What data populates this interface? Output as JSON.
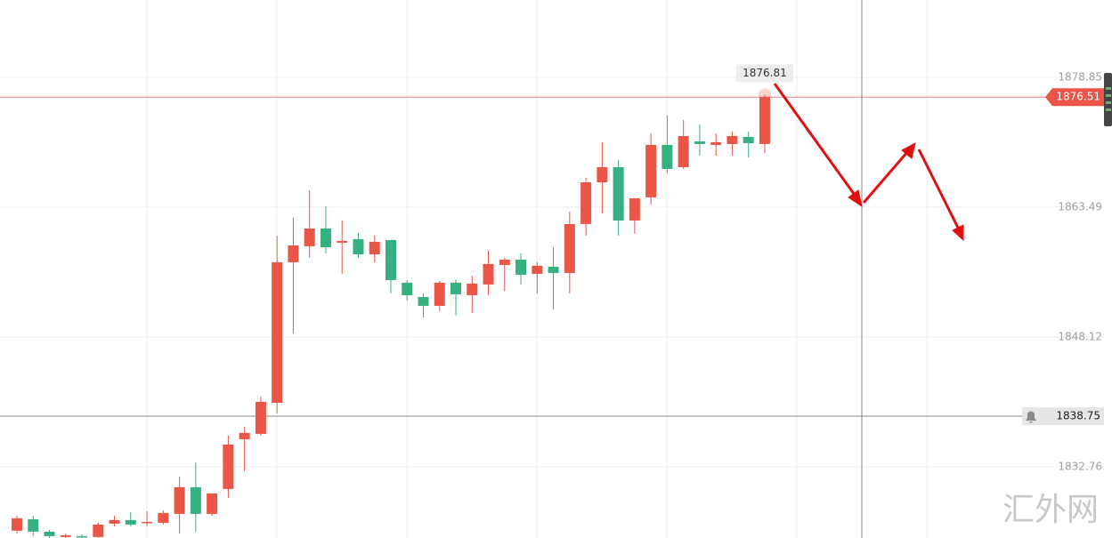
{
  "chart_data": {
    "type": "candlestick",
    "open": [
      1825.2,
      1826.56,
      1825.09,
      1824.46,
      1824.56,
      1824.46,
      1826.04,
      1826.46,
      1826.14,
      1826.14,
      1827.19,
      1830.35,
      1827.19,
      1830.14,
      1836.03,
      1836.66,
      1840.34,
      1856.97,
      1858.86,
      1860.96,
      1859.28,
      1859.7,
      1857.91,
      1859.6,
      1854.55,
      1852.86,
      1851.81,
      1854.55,
      1853.07,
      1854.34,
      1856.65,
      1857.28,
      1855.6,
      1856.44,
      1855.7,
      1861.49,
      1866.43,
      1868.22,
      1861.91,
      1864.65,
      1870.85,
      1868.22,
      1871.27,
      1870.85,
      1870.96,
      1871.8,
      1870.96
    ],
    "high": [
      1826.98,
      1826.98,
      1825.3,
      1824.88,
      1824.77,
      1826.14,
      1826.98,
      1827.4,
      1827.51,
      1827.62,
      1831.61,
      1833.3,
      1829.61,
      1836.45,
      1837.5,
      1841.08,
      1860.12,
      1862.23,
      1865.49,
      1863.59,
      1861.91,
      1860.44,
      1860.12,
      1859.6,
      1854.86,
      1853.28,
      1854.76,
      1854.86,
      1855.39,
      1858.33,
      1857.49,
      1858.02,
      1856.97,
      1858.75,
      1862.96,
      1866.96,
      1871.17,
      1869.06,
      1864.54,
      1872.22,
      1874.32,
      1873.8,
      1873.27,
      1872.22,
      1872.43,
      1872.43,
      1876.81
    ],
    "low": [
      1824.88,
      1824.56,
      1824.35,
      1824.35,
      1824.35,
      1824.35,
      1825.72,
      1825.72,
      1825.72,
      1825.93,
      1824.88,
      1825.09,
      1826.98,
      1829.09,
      1832.24,
      1836.45,
      1839.08,
      1848.55,
      1857.49,
      1858.02,
      1855.6,
      1857.49,
      1856.97,
      1853.28,
      1852.44,
      1850.44,
      1851.18,
      1850.65,
      1850.97,
      1853.07,
      1853.6,
      1854.34,
      1853.28,
      1851.39,
      1853.28,
      1860.12,
      1862.75,
      1860.12,
      1860.33,
      1863.8,
      1867.49,
      1868.01,
      1869.59,
      1869.59,
      1869.59,
      1869.38,
      1869.91
    ],
    "close": [
      1826.67,
      1825.09,
      1824.56,
      1824.67,
      1824.46,
      1825.93,
      1826.46,
      1825.93,
      1826.25,
      1827.3,
      1830.35,
      1827.19,
      1829.61,
      1835.4,
      1836.77,
      1840.45,
      1856.97,
      1858.96,
      1860.96,
      1858.75,
      1859.49,
      1857.91,
      1859.39,
      1854.86,
      1853.07,
      1851.81,
      1854.55,
      1853.18,
      1854.44,
      1856.76,
      1857.28,
      1855.49,
      1856.55,
      1855.7,
      1861.49,
      1866.43,
      1868.22,
      1861.91,
      1864.54,
      1870.85,
      1868.01,
      1871.9,
      1870.96,
      1871.17,
      1871.9,
      1871.06,
      1876.51
    ],
    "colors": {
      "up": "#eb5548",
      "down": "#35b07f"
    },
    "ylim": [
      1824.34,
      1888.0
    ],
    "yticks": [
      1832.76,
      1848.12,
      1863.49,
      1878.85
    ],
    "grid": true,
    "last_price": 1876.51,
    "crosshair_price": 1838.75,
    "high_marker": 1876.81,
    "watermark": "汇外网"
  }
}
